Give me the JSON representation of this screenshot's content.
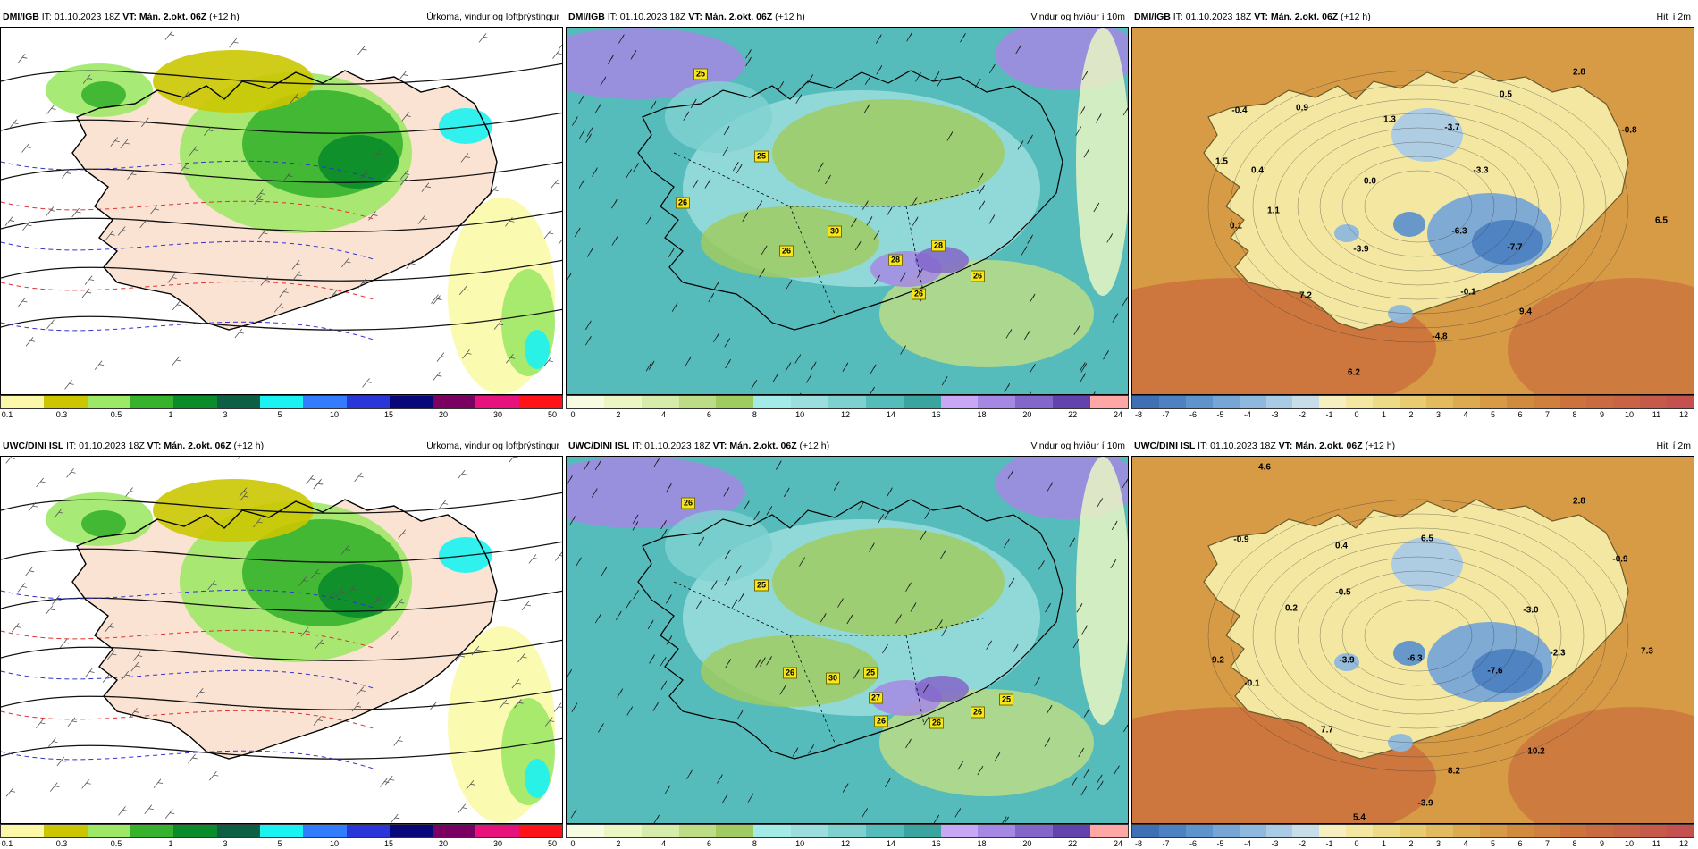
{
  "panels": [
    {
      "id": "dmi-precip",
      "source": "DMI/IGB",
      "it": "IT: 01.10.2023 18Z",
      "vt": "VT: Mán. 2.okt. 06Z",
      "lead": "(+12 h)",
      "title": "Úrkoma, vindur og loftþrýstingur",
      "kind": "precip",
      "legend": {
        "colors": [
          "#fbf9a9",
          "#cbc601",
          "#9ee867",
          "#37b22d",
          "#0b8c2a",
          "#0c5f45",
          "#1bf2f2",
          "#337cff",
          "#2b36d8",
          "#08087a",
          "#7a0062",
          "#e5137b",
          "#ff1318"
        ],
        "labels": [
          "0.1",
          "0.3",
          "0.5",
          "1",
          "3",
          "5",
          "10",
          "15",
          "20",
          "30",
          "50"
        ]
      },
      "values": [],
      "gusts": []
    },
    {
      "id": "dmi-wind",
      "source": "DMI/IGB",
      "it": "IT: 01.10.2023 18Z",
      "vt": "VT: Mán. 2.okt. 06Z",
      "lead": "(+12 h)",
      "title": "Vindur og hviður í 10m",
      "kind": "wind",
      "legend": {
        "colors": [
          "#f7fbe2",
          "#eaf6c4",
          "#d5ecaa",
          "#bcdc86",
          "#a0cb60",
          "#a3ebe7",
          "#9cdede",
          "#7fd1d0",
          "#55bcbb",
          "#3aa59f",
          "#c8a8f5",
          "#a588e3",
          "#8366c9",
          "#6242ad",
          "#ffa7a7"
        ],
        "labels": [
          "0",
          "2",
          "4",
          "6",
          "8",
          "10",
          "12",
          "14",
          "16",
          "18",
          "20",
          "22",
          "24"
        ]
      },
      "values": [],
      "gusts": [
        "25",
        "25",
        "26",
        "26",
        "30",
        "28",
        "28",
        "26",
        "26"
      ]
    },
    {
      "id": "dmi-temp",
      "source": "DMI/IGB",
      "it": "IT: 01.10.2023 18Z",
      "vt": "VT: Mán. 2.okt. 06Z",
      "lead": "(+12 h)",
      "title": "Hiti í 2m",
      "kind": "temp",
      "legend": {
        "colors": [
          "#3f6fb4",
          "#4d81c1",
          "#5f93cb",
          "#77a6d6",
          "#8fb8de",
          "#aacbe6",
          "#c7dde8",
          "#f6f0c0",
          "#f3e7a2",
          "#eedb88",
          "#e8cc72",
          "#e3bb5f",
          "#ddab4f",
          "#d79a45",
          "#d18b3e",
          "#cf7f3e",
          "#cc733d",
          "#ca6a40",
          "#c86345",
          "#c65a4a",
          "#c5504e"
        ],
        "labels": [
          "-8",
          "-7",
          "-6",
          "-5",
          "-4",
          "-3",
          "-2",
          "-1",
          "0",
          "1",
          "2",
          "3",
          "4",
          "5",
          "6",
          "7",
          "8",
          "9",
          "10",
          "11",
          "12"
        ]
      },
      "values": [
        "-0.4",
        "0.9",
        "1.3",
        "-3.7",
        "0.5",
        "2.8",
        "-0.8",
        "1.5",
        "0.4",
        "-3.3",
        "0.0",
        "1.1",
        "0.1",
        "-6.3",
        "-3.9",
        "-7.7",
        "6.5",
        "7.2",
        "-0.1",
        "9.4",
        "-4.8",
        "6.2"
      ],
      "gusts": []
    },
    {
      "id": "uwc-precip",
      "source": "UWC/DINI ISL",
      "it": "IT: 01.10.2023 18Z",
      "vt": "VT: Mán. 2.okt. 06Z",
      "lead": "(+12 h)",
      "title": "Úrkoma, vindur og loftþrýstingur",
      "kind": "precip",
      "legend": {
        "colors": [
          "#fbf9a9",
          "#cbc601",
          "#9ee867",
          "#37b22d",
          "#0b8c2a",
          "#0c5f45",
          "#1bf2f2",
          "#337cff",
          "#2b36d8",
          "#08087a",
          "#7a0062",
          "#e5137b",
          "#ff1318"
        ],
        "labels": [
          "0.1",
          "0.3",
          "0.5",
          "1",
          "3",
          "5",
          "10",
          "15",
          "20",
          "30",
          "50"
        ]
      },
      "values": [],
      "gusts": []
    },
    {
      "id": "uwc-wind",
      "source": "UWC/DINI ISL",
      "it": "IT: 01.10.2023 18Z",
      "vt": "VT: Mán. 2.okt. 06Z",
      "lead": "(+12 h)",
      "title": "Vindur og hviður í 10m",
      "kind": "wind",
      "legend": {
        "colors": [
          "#f7fbe2",
          "#eaf6c4",
          "#d5ecaa",
          "#bcdc86",
          "#a0cb60",
          "#a3ebe7",
          "#9cdede",
          "#7fd1d0",
          "#55bcbb",
          "#3aa59f",
          "#c8a8f5",
          "#a588e3",
          "#8366c9",
          "#6242ad",
          "#ffa7a7"
        ],
        "labels": [
          "0",
          "2",
          "4",
          "6",
          "8",
          "10",
          "12",
          "14",
          "16",
          "18",
          "20",
          "22",
          "24"
        ]
      },
      "values": [],
      "gusts": [
        "26",
        "25",
        "26",
        "30",
        "25",
        "27",
        "26",
        "26",
        "26",
        "25"
      ]
    },
    {
      "id": "uwc-temp",
      "source": "UWC/DINI ISL",
      "it": "IT: 01.10.2023 18Z",
      "vt": "VT: Mán. 2.okt. 06Z",
      "lead": "(+12 h)",
      "title": "Hiti í 2m",
      "kind": "temp",
      "legend": {
        "colors": [
          "#3f6fb4",
          "#4d81c1",
          "#5f93cb",
          "#77a6d6",
          "#8fb8de",
          "#aacbe6",
          "#c7dde8",
          "#f6f0c0",
          "#f3e7a2",
          "#eedb88",
          "#e8cc72",
          "#e3bb5f",
          "#ddab4f",
          "#d79a45",
          "#d18b3e",
          "#cf7f3e",
          "#cc733d",
          "#ca6a40",
          "#c86345",
          "#c65a4a",
          "#c5504e"
        ],
        "labels": [
          "-8",
          "-7",
          "-6",
          "-5",
          "-4",
          "-3",
          "-2",
          "-1",
          "0",
          "1",
          "2",
          "3",
          "4",
          "5",
          "6",
          "7",
          "8",
          "9",
          "10",
          "11",
          "12"
        ]
      },
      "values": [
        "4.6",
        "2.8",
        "-0.9",
        "0.4",
        "6.5",
        "-0.9",
        "0.2",
        "-0.5",
        "-3.0",
        "9.2",
        "-3.9",
        "-6.3",
        "-7.6",
        "-2.3",
        "7.3",
        "-0.1",
        "7.7",
        "10.2",
        "8.2",
        "-3.9",
        "5.4"
      ],
      "gusts": []
    }
  ]
}
